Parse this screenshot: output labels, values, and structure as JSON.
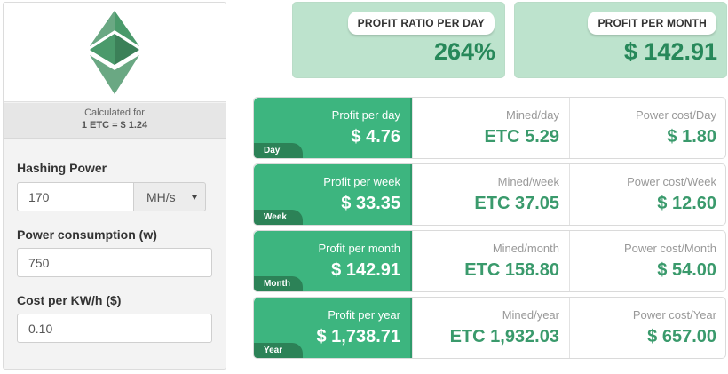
{
  "calc": {
    "label": "Calculated for",
    "value": "1 ETC = $ 1.24"
  },
  "form": {
    "hashing_label": "Hashing Power",
    "hashing_value": "170",
    "hashing_unit": "MH/s",
    "power_label": "Power consumption (w)",
    "power_value": "750",
    "cost_label": "Cost per KW/h ($)",
    "cost_value": "0.10"
  },
  "summary": {
    "ratio_label": "PROFIT RATIO PER DAY",
    "ratio_value": "264%",
    "month_label": "PROFIT PER MONTH",
    "month_value": "$ 142.91"
  },
  "rows": [
    {
      "tab": "Day",
      "profit_label": "Profit per day",
      "profit_value": "$ 4.76",
      "mined_label": "Mined/day",
      "mined_value": "ETC 5.29",
      "power_label": "Power cost/Day",
      "power_value": "$ 1.80"
    },
    {
      "tab": "Week",
      "profit_label": "Profit per week",
      "profit_value": "$ 33.35",
      "mined_label": "Mined/week",
      "mined_value": "ETC 37.05",
      "power_label": "Power cost/Week",
      "power_value": "$ 12.60"
    },
    {
      "tab": "Month",
      "profit_label": "Profit per month",
      "profit_value": "$ 142.91",
      "mined_label": "Mined/month",
      "mined_value": "ETC 158.80",
      "power_label": "Power cost/Month",
      "power_value": "$ 54.00"
    },
    {
      "tab": "Year",
      "profit_label": "Profit per year",
      "profit_value": "$ 1,738.71",
      "mined_label": "Mined/year",
      "mined_value": "ETC 1,932.03",
      "power_label": "Power cost/Year",
      "power_value": "$ 657.00"
    }
  ],
  "icons": {
    "logo": "ethereum-classic-logo-icon",
    "unit_caret": "caret-down-icon"
  },
  "colors": {
    "accent": "#3db57f",
    "accent_dark": "#2c8257",
    "summary_bg": "#bde3cd",
    "value_green": "#3a9a6c"
  }
}
